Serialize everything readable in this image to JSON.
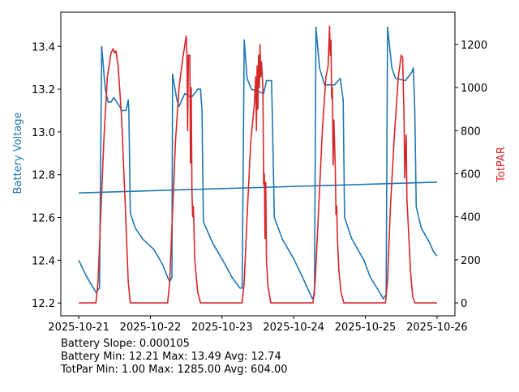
{
  "chart_data": {
    "type": "line",
    "x_ticks": [
      "2025-10-21",
      "2025-10-22",
      "2025-10-23",
      "2025-10-24",
      "2025-10-25",
      "2025-10-26"
    ],
    "x_unit": "days since 2025-10-21",
    "xlim": [
      -0.25,
      5.25
    ],
    "left_axis": {
      "label": "Battery Voltage",
      "color": "#1f77b4",
      "ylim": [
        12.14,
        13.56
      ],
      "ticks": [
        "12.2",
        "12.4",
        "12.6",
        "12.8",
        "13.0",
        "13.2",
        "13.4"
      ],
      "tick_values": [
        12.2,
        12.4,
        12.6,
        12.8,
        13.0,
        13.2,
        13.4
      ]
    },
    "right_axis": {
      "label": "TotPAR",
      "color": "#d62728",
      "ylim": [
        -60,
        1350
      ],
      "ticks": [
        "0",
        "200",
        "400",
        "600",
        "800",
        "1000",
        "1200"
      ],
      "tick_values": [
        0,
        200,
        400,
        600,
        800,
        1000,
        1200
      ]
    },
    "series": [
      {
        "name": "Battery Voltage",
        "axis": "left",
        "color": "#1f77b4",
        "points": [
          [
            0,
            12.4
          ],
          [
            0.1,
            12.33
          ],
          [
            0.24,
            12.25
          ],
          [
            0.29,
            12.27
          ],
          [
            0.32,
            13.4
          ],
          [
            0.37,
            13.2
          ],
          [
            0.41,
            13.14
          ],
          [
            0.45,
            13.14
          ],
          [
            0.49,
            13.16
          ],
          [
            0.57,
            13.12
          ],
          [
            0.6,
            13.1
          ],
          [
            0.66,
            13.1
          ],
          [
            0.69,
            13.15
          ],
          [
            0.7,
            13.1
          ],
          [
            0.72,
            12.62
          ],
          [
            0.79,
            12.55
          ],
          [
            0.89,
            12.5
          ],
          [
            1.05,
            12.45
          ],
          [
            1.17,
            12.38
          ],
          [
            1.24,
            12.32
          ],
          [
            1.27,
            12.3
          ],
          [
            1.3,
            12.32
          ],
          [
            1.31,
            13.27
          ],
          [
            1.37,
            13.15
          ],
          [
            1.4,
            13.12
          ],
          [
            1.48,
            13.18
          ],
          [
            1.57,
            13.16
          ],
          [
            1.66,
            13.2
          ],
          [
            1.7,
            13.2
          ],
          [
            1.72,
            13.1
          ],
          [
            1.74,
            12.58
          ],
          [
            1.87,
            12.48
          ],
          [
            2.01,
            12.4
          ],
          [
            2.14,
            12.32
          ],
          [
            2.25,
            12.27
          ],
          [
            2.28,
            12.27
          ],
          [
            2.31,
            13.43
          ],
          [
            2.35,
            13.25
          ],
          [
            2.41,
            13.2
          ],
          [
            2.58,
            13.18
          ],
          [
            2.62,
            13.24
          ],
          [
            2.69,
            13.24
          ],
          [
            2.7,
            13.1
          ],
          [
            2.73,
            12.6
          ],
          [
            2.84,
            12.5
          ],
          [
            3.01,
            12.4
          ],
          [
            3.11,
            12.33
          ],
          [
            3.22,
            12.25
          ],
          [
            3.26,
            12.22
          ],
          [
            3.29,
            12.24
          ],
          [
            3.31,
            13.49
          ],
          [
            3.36,
            13.3
          ],
          [
            3.43,
            13.22
          ],
          [
            3.57,
            13.22
          ],
          [
            3.65,
            13.25
          ],
          [
            3.69,
            13.15
          ],
          [
            3.71,
            12.6
          ],
          [
            3.81,
            12.5
          ],
          [
            3.98,
            12.4
          ],
          [
            4.07,
            12.32
          ],
          [
            4.2,
            12.25
          ],
          [
            4.25,
            12.22
          ],
          [
            4.29,
            12.24
          ],
          [
            4.31,
            13.49
          ],
          [
            4.37,
            13.3
          ],
          [
            4.42,
            13.25
          ],
          [
            4.56,
            13.24
          ],
          [
            4.65,
            13.28
          ],
          [
            4.67,
            13.3
          ],
          [
            4.69,
            13.1
          ],
          [
            4.71,
            12.65
          ],
          [
            4.78,
            12.55
          ],
          [
            4.9,
            12.48
          ],
          [
            4.95,
            12.44
          ],
          [
            5.0,
            12.42
          ]
        ]
      },
      {
        "name": "Battery trend",
        "axis": "left",
        "color": "#1f77b4",
        "points": [
          [
            0,
            12.715
          ],
          [
            5,
            12.765
          ]
        ]
      },
      {
        "name": "TotPAR",
        "axis": "right",
        "color": "#d62728",
        "points": [
          [
            0,
            0
          ],
          [
            0.24,
            0
          ],
          [
            0.27,
            100
          ],
          [
            0.3,
            350
          ],
          [
            0.35,
            750
          ],
          [
            0.4,
            1050
          ],
          [
            0.45,
            1160
          ],
          [
            0.48,
            1180
          ],
          [
            0.5,
            1160
          ],
          [
            0.52,
            1170
          ],
          [
            0.55,
            1100
          ],
          [
            0.6,
            850
          ],
          [
            0.65,
            450
          ],
          [
            0.69,
            100
          ],
          [
            0.72,
            0
          ],
          [
            1.24,
            0
          ],
          [
            1.27,
            100
          ],
          [
            1.3,
            350
          ],
          [
            1.35,
            750
          ],
          [
            1.4,
            1000
          ],
          [
            1.45,
            1130
          ],
          [
            1.5,
            1240
          ],
          [
            1.51,
            1150
          ],
          [
            1.52,
            800
          ],
          [
            1.53,
            1150
          ],
          [
            1.55,
            1150
          ],
          [
            1.56,
            650
          ],
          [
            1.57,
            1000
          ],
          [
            1.58,
            520
          ],
          [
            1.59,
            400
          ],
          [
            1.6,
            450
          ],
          [
            1.62,
            200
          ],
          [
            1.66,
            50
          ],
          [
            1.7,
            0
          ],
          [
            2.28,
            0
          ],
          [
            2.31,
            100
          ],
          [
            2.35,
            400
          ],
          [
            2.4,
            750
          ],
          [
            2.45,
            920
          ],
          [
            2.47,
            1050
          ],
          [
            2.48,
            800
          ],
          [
            2.49,
            1100
          ],
          [
            2.5,
            900
          ],
          [
            2.51,
            1150
          ],
          [
            2.52,
            1000
          ],
          [
            2.53,
            1200
          ],
          [
            2.54,
            1050
          ],
          [
            2.55,
            1120
          ],
          [
            2.57,
            1000
          ],
          [
            2.58,
            550
          ],
          [
            2.59,
            600
          ],
          [
            2.6,
            300
          ],
          [
            2.61,
            560
          ],
          [
            2.62,
            200
          ],
          [
            2.64,
            80
          ],
          [
            2.68,
            0
          ],
          [
            3.27,
            0
          ],
          [
            3.3,
            100
          ],
          [
            3.35,
            450
          ],
          [
            3.4,
            800
          ],
          [
            3.45,
            1050
          ],
          [
            3.48,
            1100
          ],
          [
            3.5,
            1285
          ],
          [
            3.51,
            1150
          ],
          [
            3.52,
            1220
          ],
          [
            3.53,
            950
          ],
          [
            3.54,
            1000
          ],
          [
            3.55,
            640
          ],
          [
            3.56,
            850
          ],
          [
            3.58,
            640
          ],
          [
            3.59,
            410
          ],
          [
            3.6,
            450
          ],
          [
            3.61,
            300
          ],
          [
            3.63,
            150
          ],
          [
            3.66,
            50
          ],
          [
            3.7,
            0
          ],
          [
            4.28,
            0
          ],
          [
            4.31,
            100
          ],
          [
            4.35,
            450
          ],
          [
            4.4,
            750
          ],
          [
            4.43,
            900
          ],
          [
            4.46,
            1050
          ],
          [
            4.48,
            1100
          ],
          [
            4.5,
            1150
          ],
          [
            4.52,
            1140
          ],
          [
            4.53,
            1000
          ],
          [
            4.54,
            850
          ],
          [
            4.55,
            580
          ],
          [
            4.56,
            700
          ],
          [
            4.57,
            780
          ],
          [
            4.58,
            480
          ],
          [
            4.6,
            350
          ],
          [
            4.63,
            150
          ],
          [
            4.66,
            30
          ],
          [
            4.69,
            0
          ],
          [
            5.0,
            0
          ]
        ]
      }
    ],
    "grid": false
  },
  "stats": {
    "slope": "Battery Slope: 0.000105",
    "battery": "Battery Min: 12.21 Max: 13.49 Avg: 12.74",
    "totpar": "TotPar Min: 1.00 Max: 1285.00 Avg: 604.00"
  }
}
